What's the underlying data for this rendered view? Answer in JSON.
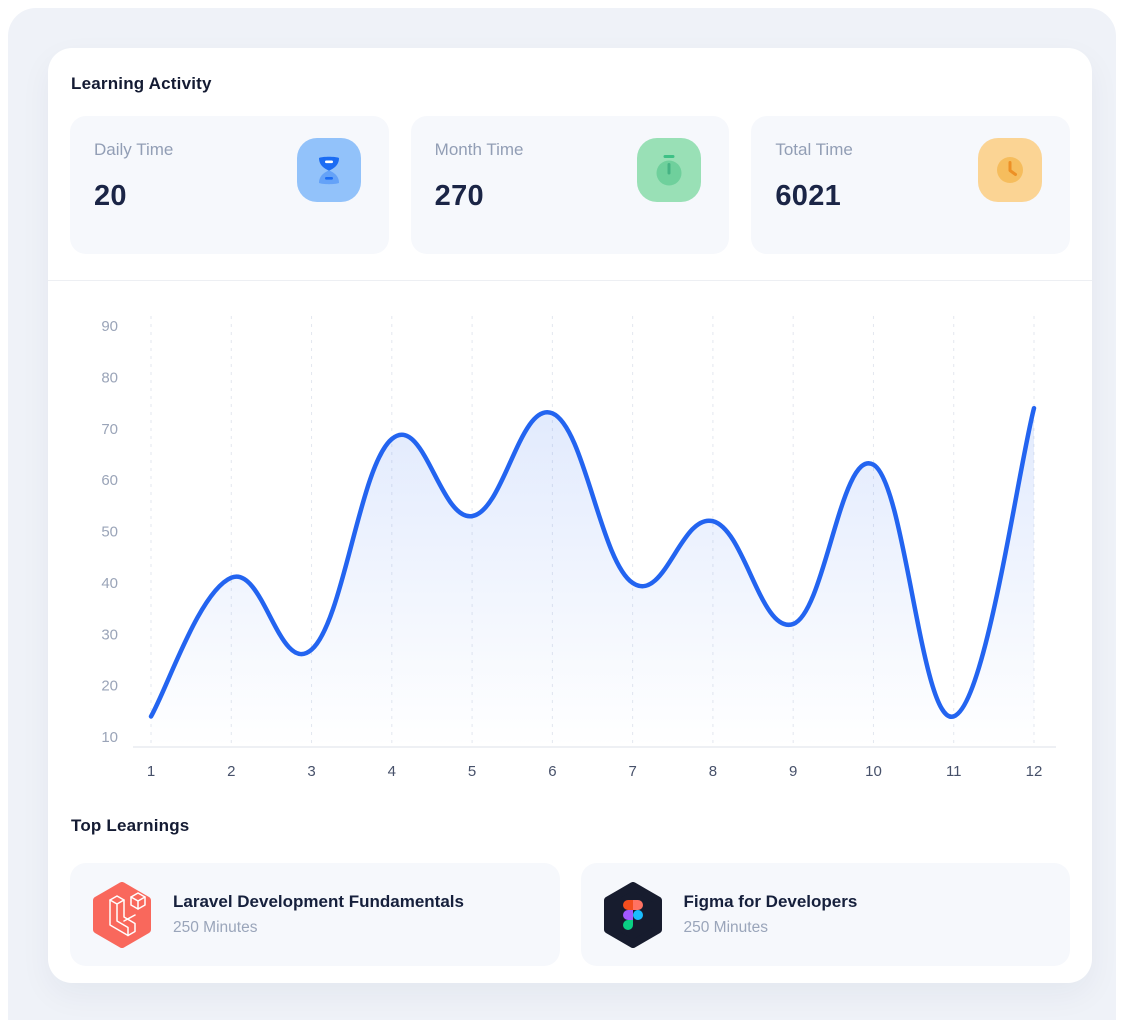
{
  "page": {
    "bg": "#eff2f8",
    "panel_bg": "#ffffff"
  },
  "header": {
    "title": "Learning Activity"
  },
  "stats": [
    {
      "label": "Daily Time",
      "value": "20",
      "icon": "hourglass-icon",
      "tile_color": "#92c2fa"
    },
    {
      "label": "Month Time",
      "value": "270",
      "icon": "stopwatch-icon",
      "tile_color": "#99e0b6"
    },
    {
      "label": "Total Time",
      "value": "6021",
      "icon": "clock-icon",
      "tile_color": "#fbd494"
    }
  ],
  "chart_data": {
    "type": "line",
    "x": [
      1,
      2,
      3,
      4,
      5,
      6,
      7,
      8,
      9,
      10,
      11,
      12
    ],
    "values": [
      14,
      41,
      27,
      68,
      53,
      73,
      40,
      52,
      32,
      63,
      14,
      74
    ],
    "title": "",
    "xlabel": "",
    "ylabel": "",
    "ylim": [
      10,
      90
    ],
    "yticks": [
      10,
      20,
      30,
      40,
      50,
      60,
      70,
      80,
      90
    ],
    "grid": "vertical-dashed",
    "legend": "none",
    "line_color": "#2364f0",
    "fill": "blue-fade-gradient",
    "ylabel_color": "#9aa4b8",
    "xlabel_color": "#47516a"
  },
  "top_learnings": {
    "title": "Top Learnings",
    "items": [
      {
        "title": "Laravel Development Fundamentals",
        "duration": "250 Minutes",
        "icon": "laravel-icon",
        "icon_bg": "#f9685c"
      },
      {
        "title": "Figma for Developers",
        "duration": "250 Minutes",
        "icon": "figma-icon",
        "icon_bg": "#171c2e"
      }
    ]
  }
}
